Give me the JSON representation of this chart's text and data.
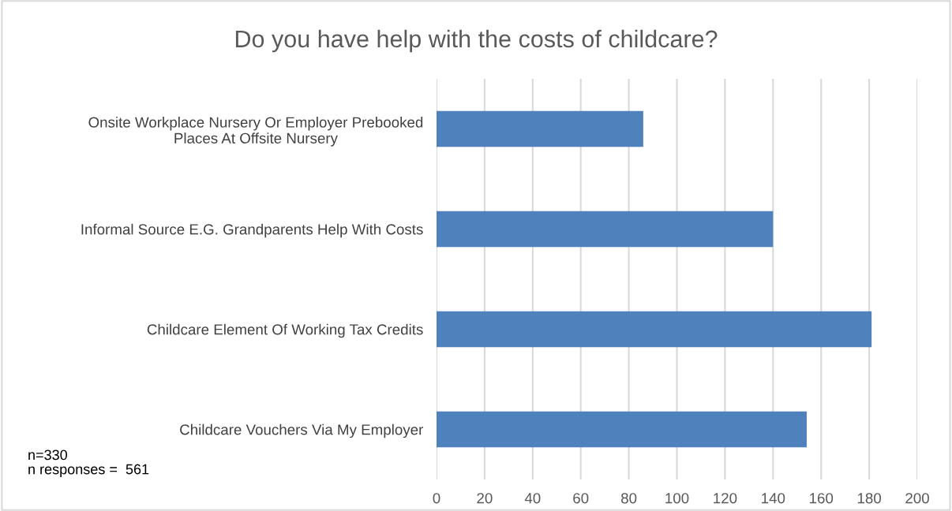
{
  "chart_data": {
    "type": "bar",
    "orientation": "horizontal",
    "title": "Do you have help with the costs of childcare?",
    "categories": [
      "Onsite Workplace Nursery Or Employer Prebooked\nPlaces At Offsite Nursery",
      "Informal Source E.G. Grandparents Help With Costs",
      "Childcare Element Of Working Tax Credits",
      "Childcare Vouchers Via My Employer"
    ],
    "values": [
      86,
      140,
      181,
      154
    ],
    "color": "#4f81bd",
    "xlim": [
      0,
      200
    ],
    "xticks": [
      0,
      20,
      40,
      60,
      80,
      100,
      120,
      140,
      160,
      180,
      200
    ],
    "grid": "x",
    "annotations": [
      "n=330\nn responses =  561"
    ]
  }
}
